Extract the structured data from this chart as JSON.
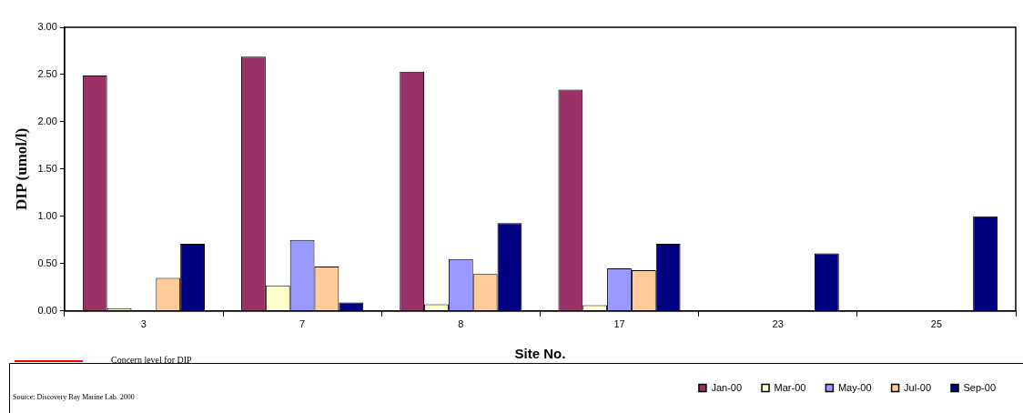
{
  "chart_data": {
    "type": "bar",
    "xlabel": "Site No.",
    "ylabel": "DIP (umol/l)",
    "categories": [
      "3",
      "7",
      "8",
      "17",
      "23",
      "25"
    ],
    "series": [
      {
        "name": "Jan-00",
        "color": "#993366",
        "values": [
          2.49,
          2.69,
          2.53,
          2.34,
          null,
          null
        ]
      },
      {
        "name": "Mar-00",
        "color": "#ffffcc",
        "values": [
          0.03,
          0.27,
          0.07,
          0.06,
          null,
          null
        ]
      },
      {
        "name": "May-00",
        "color": "#9999ff",
        "values": [
          null,
          0.75,
          0.55,
          0.45,
          null,
          null
        ]
      },
      {
        "name": "Jul-00",
        "color": "#ffcc99",
        "values": [
          0.35,
          0.47,
          0.39,
          0.43,
          null,
          null
        ]
      },
      {
        "name": "Sep-00",
        "color": "#000080",
        "values": [
          0.71,
          0.09,
          0.93,
          0.71,
          0.61,
          1.0
        ]
      }
    ],
    "ylim": [
      0,
      3
    ],
    "yticks": [
      {
        "value": 0,
        "label": "0.00"
      },
      {
        "value": 0.5,
        "label": "0.50"
      },
      {
        "value": 1,
        "label": "1.00"
      },
      {
        "value": 1.5,
        "label": "1.50"
      },
      {
        "value": 2,
        "label": "2.00"
      },
      {
        "value": 2.5,
        "label": "2.50"
      },
      {
        "value": 3,
        "label": "3.00"
      }
    ],
    "legend": "bottom right",
    "annotations": [
      "Concern level for DIP",
      "Source: Discovery Bay Marine Lab. 2000"
    ]
  }
}
